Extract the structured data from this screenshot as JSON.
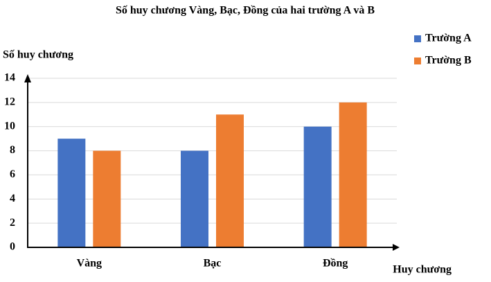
{
  "chart_data": {
    "type": "bar",
    "title": "Số huy chương Vàng, Bạc, Đồng của hai trường A và B",
    "y_label": "Số huy chương",
    "x_label": "Huy chương",
    "categories": [
      "Vàng",
      "Bạc",
      "Đồng"
    ],
    "series": [
      {
        "name": "Trường A",
        "color": "#4472c4",
        "values": [
          9,
          8,
          10
        ]
      },
      {
        "name": "Trường B",
        "color": "#ed7d31",
        "values": [
          8,
          11,
          12
        ]
      }
    ],
    "ylim": [
      0,
      14
    ],
    "yticks": [
      0,
      2,
      4,
      6,
      8,
      10,
      12,
      14
    ],
    "grid": true,
    "legend": "top-right"
  }
}
